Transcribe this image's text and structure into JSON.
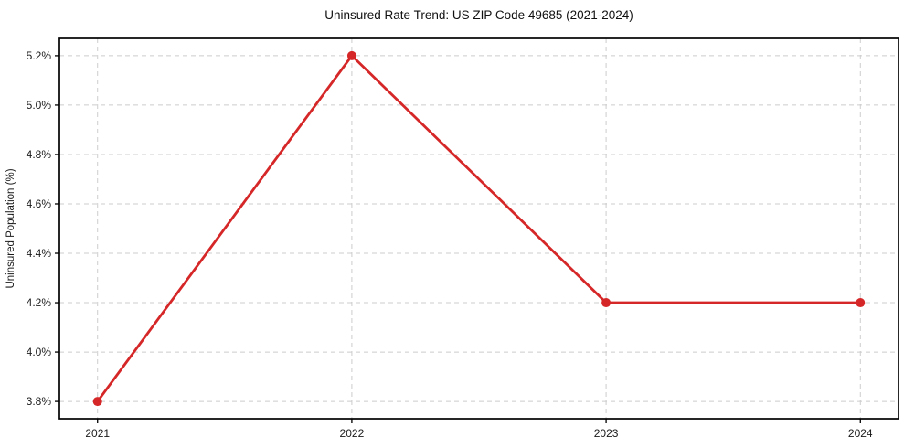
{
  "chart_data": {
    "type": "line",
    "title": "Uninsured Rate Trend: US ZIP Code 49685 (2021-2024)",
    "xlabel": "",
    "ylabel": "Uninsured Population (%)",
    "categories": [
      "2021",
      "2022",
      "2023",
      "2024"
    ],
    "x": [
      2021,
      2022,
      2023,
      2024
    ],
    "series": [
      {
        "name": "Uninsured Rate",
        "values": [
          3.8,
          5.2,
          4.2,
          4.2
        ]
      }
    ],
    "y_ticks": [
      3.8,
      4.0,
      4.2,
      4.4,
      4.6,
      4.8,
      5.0,
      5.2
    ],
    "y_tick_labels": [
      "3.8%",
      "4.0%",
      "4.2%",
      "4.4%",
      "4.6%",
      "4.8%",
      "5.0%",
      "5.2%"
    ],
    "xlim": [
      2020.85,
      2024.15
    ],
    "ylim": [
      3.73,
      5.27
    ],
    "grid": true,
    "grid_style": "dashed",
    "legend": false,
    "marker": "circle",
    "colors": {
      "line": "#d62728",
      "marker": "#d62728",
      "grid": "#cccccc",
      "spine": "#000000",
      "tick_text": "#1a1a1a",
      "title_text": "#111111",
      "background": "#ffffff"
    }
  }
}
